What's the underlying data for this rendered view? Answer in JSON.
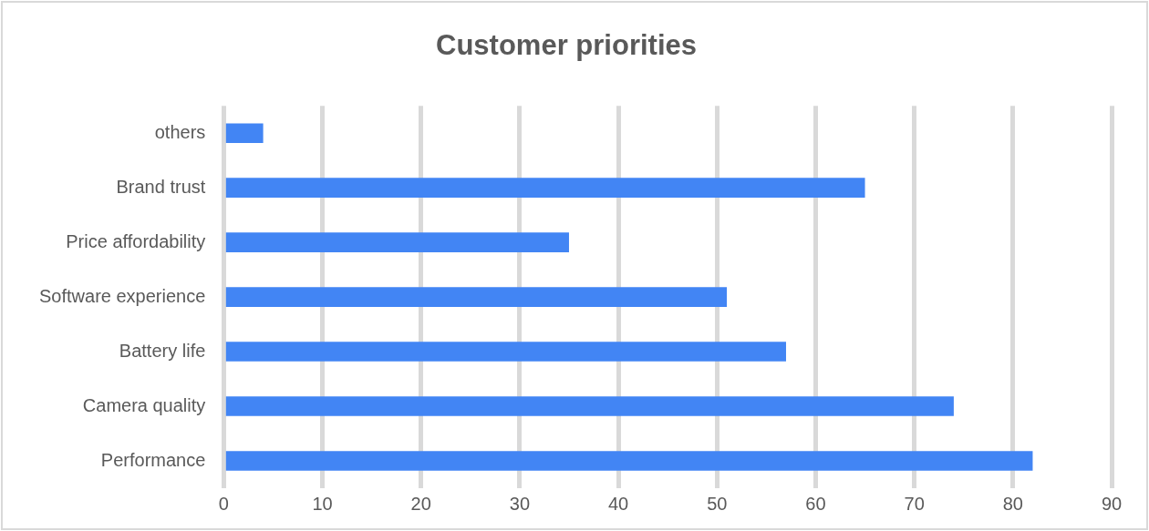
{
  "chart_data": {
    "type": "bar",
    "orientation": "horizontal",
    "title": "Customer priorities",
    "categories": [
      "others",
      "Brand trust",
      "Price affordability",
      "Software experience",
      "Battery life",
      "Camera quality",
      "Performance"
    ],
    "values": [
      4,
      65,
      35,
      51,
      57,
      74,
      82
    ],
    "color": "#4285f4",
    "xlim": [
      0,
      90
    ],
    "xticks": [
      0,
      10,
      20,
      30,
      40,
      50,
      60,
      70,
      80,
      90
    ],
    "grid": "x",
    "legend": false
  }
}
